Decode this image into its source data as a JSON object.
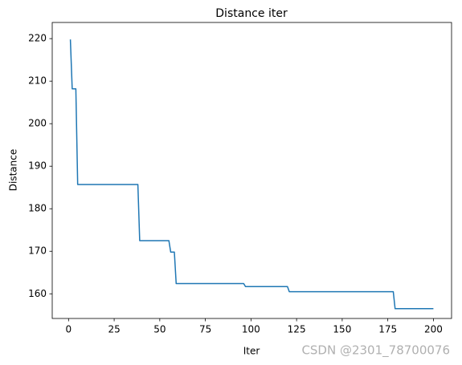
{
  "chart_data": {
    "type": "line",
    "title": "Distance iter",
    "x_label": "Iter",
    "y_label": "Distance",
    "watermark": "CSDN @2301_78700076",
    "x": [
      1,
      2,
      4,
      5,
      38,
      39,
      55,
      56,
      58,
      59,
      96,
      97,
      120,
      121,
      178,
      179,
      200
    ],
    "series": [
      {
        "name": "Distance",
        "color": "#1f77b4",
        "values": [
          219.8,
          208.2,
          208.2,
          185.7,
          185.7,
          172.5,
          172.5,
          169.8,
          169.8,
          162.4,
          162.4,
          161.7,
          161.7,
          160.5,
          160.5,
          156.5,
          156.5
        ]
      }
    ],
    "xlim": [
      -8.95,
      209.95
    ],
    "xticks": [
      0,
      25,
      50,
      75,
      100,
      125,
      150,
      175,
      200
    ],
    "ylim": [
      154.2,
      223.8
    ],
    "yticks": [
      160,
      170,
      180,
      190,
      200,
      210,
      220
    ],
    "grid": false
  }
}
